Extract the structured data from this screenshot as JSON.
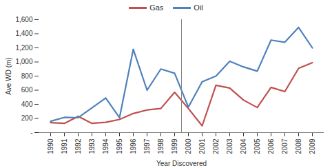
{
  "chart_data": {
    "type": "line",
    "x_label": "Year Discovered",
    "y_label": "Ave WD (m)",
    "categories": [
      "1990",
      "1991",
      "1992",
      "1993",
      "1994",
      "1995",
      "1996",
      "1997",
      "1998",
      "1999",
      "2000",
      "2001",
      "2002",
      "2003",
      "2004",
      "2005",
      "2006",
      "2007",
      "2008",
      "2009"
    ],
    "series": [
      {
        "name": "Gas",
        "color": "#c0504d",
        "values": [
          140,
          130,
          230,
          130,
          145,
          185,
          270,
          320,
          340,
          570,
          340,
          95,
          670,
          630,
          460,
          355,
          640,
          580,
          910,
          990
        ]
      },
      {
        "name": "Oil",
        "color": "#4f81bd",
        "values": [
          160,
          215,
          210,
          350,
          490,
          210,
          1180,
          600,
          900,
          840,
          360,
          720,
          800,
          1010,
          930,
          870,
          1310,
          1280,
          1490,
          1200
        ]
      }
    ],
    "ylim": [
      0,
      1600
    ],
    "yticks": [
      {
        "value": 0,
        "label": "-"
      },
      200,
      400,
      600,
      800,
      {
        "value": 1000,
        "label": "1,000"
      },
      {
        "value": 1200,
        "label": "1,200"
      },
      {
        "value": 1400,
        "label": "1,400"
      },
      {
        "value": 1600,
        "label": "1,600"
      }
    ],
    "grid": false,
    "legend": "top",
    "marker": "none"
  }
}
